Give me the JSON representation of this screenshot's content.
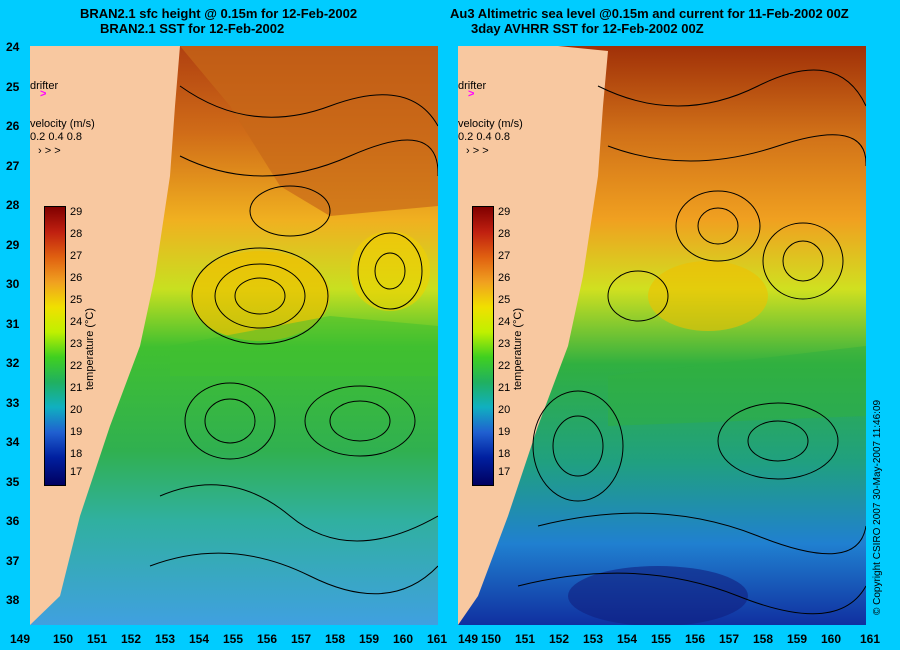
{
  "titles": {
    "left_line1": "BRAN2.1 sfc height @ 0.15m for 12-Feb-2002",
    "left_line2": "BRAN2.1 SST for 12-Feb-2002",
    "right_line1": "Au3 Altimetric sea level  @0.15m and current for 11-Feb-2002 00Z",
    "right_line2": "3day AVHRR SST for 12-Feb-2002 00Z"
  },
  "lat_ticks": [
    "24",
    "25",
    "26",
    "27",
    "28",
    "29",
    "30",
    "31",
    "32",
    "33",
    "34",
    "35",
    "36",
    "37",
    "38"
  ],
  "lon_ticks": [
    "149",
    "150",
    "151",
    "152",
    "153",
    "154",
    "155",
    "156",
    "157",
    "158",
    "159",
    "160",
    "161"
  ],
  "legend": {
    "drifter": "drifter",
    "velocity_label": "velocity (m/s)",
    "velocity_values": "0.2 0.4 0.8",
    "arrow_glyphs": "› > >",
    "temp_ticks": [
      "29",
      "28",
      "27",
      "26",
      "25",
      "24",
      "23",
      "22",
      "21",
      "20",
      "19",
      "18",
      "17"
    ],
    "temp_label": "temperature (°C)"
  },
  "copyright": "© Copyright CSIRO 2007    30-May-2007 11:46:09",
  "colors": {
    "background": "#00ccff",
    "land": "#f8c8a0",
    "warm": "#d07010",
    "mid": "#f0c000",
    "cool": "#30c040",
    "cold": "#2080e0",
    "drifter": "#ff00ff"
  }
}
